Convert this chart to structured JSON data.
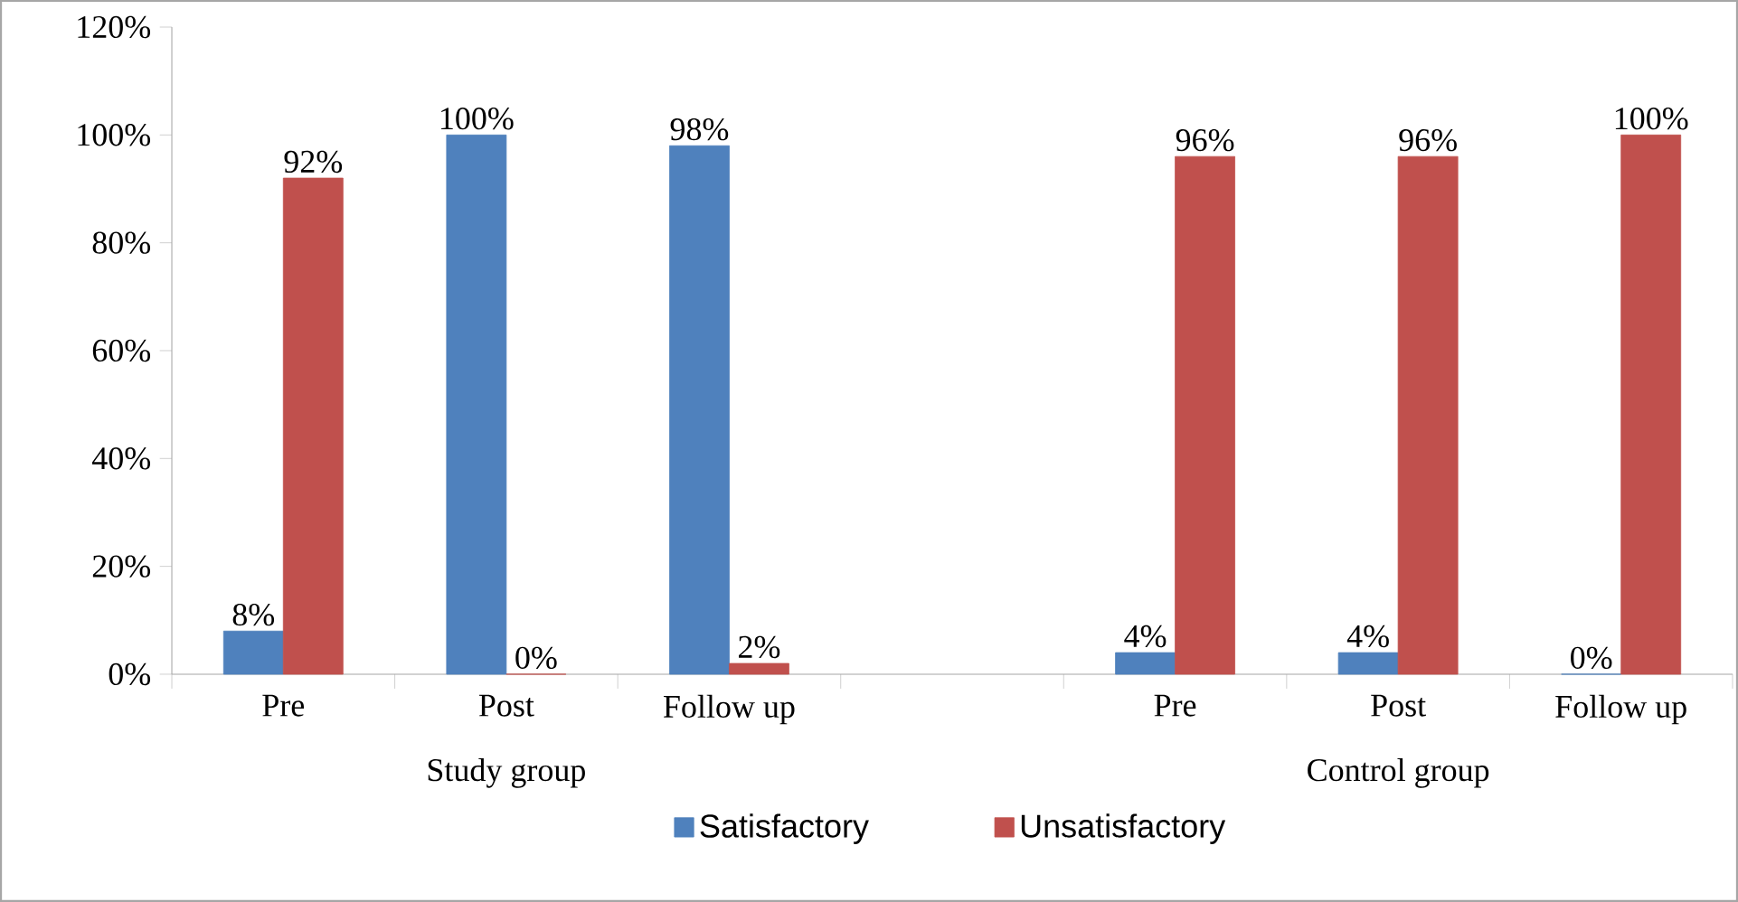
{
  "chart_data": {
    "type": "bar",
    "categories": [
      "Pre",
      "Post",
      "Follow up",
      null,
      "Pre",
      "Post",
      "Follow up"
    ],
    "series": [
      {
        "name": "Satisfactory",
        "color": "#4f81bd",
        "values": [
          8,
          100,
          98,
          null,
          4,
          4,
          0
        ],
        "value_labels": [
          "8%",
          "100%",
          "98%",
          null,
          "4%",
          "4%",
          "0%"
        ]
      },
      {
        "name": "Unsatisfactory",
        "color": "#c0504d",
        "values": [
          92,
          0,
          2,
          null,
          96,
          96,
          100
        ],
        "value_labels": [
          "92%",
          "0%",
          "2%",
          null,
          "96%",
          "96%",
          "100%"
        ]
      }
    ],
    "ylim": [
      0,
      120
    ],
    "yticks": [
      {
        "value": 0,
        "label": "0%"
      },
      {
        "value": 20,
        "label": "20%"
      },
      {
        "value": 40,
        "label": "40%"
      },
      {
        "value": 60,
        "label": "60%"
      },
      {
        "value": 80,
        "label": "80%"
      },
      {
        "value": 100,
        "label": "100%"
      },
      {
        "value": 120,
        "label": "120%"
      }
    ],
    "annotations": [
      "Study group",
      "Control group"
    ],
    "legend": "bottom",
    "grid": false
  }
}
